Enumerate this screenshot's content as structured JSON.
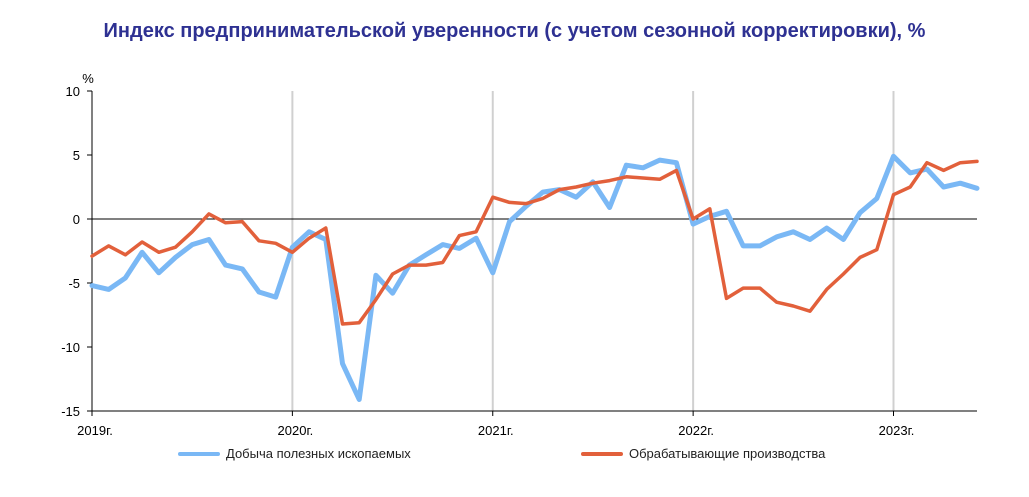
{
  "colors": {
    "title": "#2E3192",
    "mining": "#7AB8F5",
    "manufacturing": "#E2603B",
    "grid": "#D0D0D0",
    "axis": "#000000"
  },
  "chart_data": {
    "type": "line",
    "title": "Индекс предпринимательской уверенности (с учетом сезонной корректировки), %",
    "ylabel": "%",
    "ylim": [
      -15,
      10
    ],
    "yticks": [
      10,
      5,
      0,
      -5,
      -10,
      -15
    ],
    "x_range": [
      "2019-01",
      "2023-06"
    ],
    "x_ticks": [
      {
        "date": "2019-01",
        "label": "2019г."
      },
      {
        "date": "2020-01",
        "label": "2020г."
      },
      {
        "date": "2021-01",
        "label": "2021г."
      },
      {
        "date": "2022-01",
        "label": "2022г."
      },
      {
        "date": "2023-01",
        "label": "2023г."
      }
    ],
    "grid": "vertical at year ticks",
    "legend_position": "bottom",
    "x": [
      "2019-01",
      "2019-02",
      "2019-03",
      "2019-04",
      "2019-05",
      "2019-06",
      "2019-07",
      "2019-08",
      "2019-09",
      "2019-10",
      "2019-11",
      "2019-12",
      "2020-01",
      "2020-02",
      "2020-03",
      "2020-04",
      "2020-05",
      "2020-06",
      "2020-07",
      "2020-08",
      "2020-09",
      "2020-10",
      "2020-11",
      "2020-12",
      "2021-01",
      "2021-02",
      "2021-03",
      "2021-04",
      "2021-05",
      "2021-06",
      "2021-07",
      "2021-08",
      "2021-09",
      "2021-10",
      "2021-11",
      "2021-12",
      "2022-01",
      "2022-02",
      "2022-03",
      "2022-04",
      "2022-05",
      "2022-06",
      "2022-07",
      "2022-08",
      "2022-09",
      "2022-10",
      "2022-11",
      "2022-12",
      "2023-01",
      "2023-02",
      "2023-03",
      "2023-04",
      "2023-05",
      "2023-06"
    ],
    "series": [
      {
        "name": "Добыча полезных ископаемых",
        "color": "#7AB8F5",
        "values": [
          -5.2,
          -5.5,
          -4.6,
          -2.6,
          -4.2,
          -3.0,
          -2.0,
          -1.6,
          -3.6,
          -3.9,
          -5.7,
          -6.1,
          -2.2,
          -1.0,
          -1.6,
          -11.3,
          -14.1,
          -4.4,
          -5.8,
          -3.6,
          -2.8,
          -2.0,
          -2.3,
          -1.5,
          -4.2,
          -0.2,
          1.0,
          2.1,
          2.3,
          1.7,
          2.9,
          0.9,
          4.2,
          4.0,
          4.6,
          4.4,
          -0.4,
          0.2,
          0.6,
          -2.1,
          -2.1,
          -1.4,
          -1.0,
          -1.6,
          -0.7,
          -1.6,
          0.5,
          1.6,
          4.9,
          3.6,
          3.9,
          2.5,
          2.8,
          2.4
        ]
      },
      {
        "name": "Обрабатывающие производства",
        "color": "#E2603B",
        "values": [
          -2.9,
          -2.1,
          -2.8,
          -1.8,
          -2.6,
          -2.2,
          -1.0,
          0.4,
          -0.3,
          -0.2,
          -1.7,
          -1.9,
          -2.6,
          -1.5,
          -0.7,
          -8.2,
          -8.1,
          -6.3,
          -4.3,
          -3.6,
          -3.6,
          -3.4,
          -1.3,
          -1.0,
          1.7,
          1.3,
          1.2,
          1.6,
          2.3,
          2.5,
          2.8,
          3.0,
          3.3,
          3.2,
          3.1,
          3.8,
          0.0,
          0.8,
          -6.2,
          -5.4,
          -5.4,
          -6.5,
          -6.8,
          -7.2,
          -5.5,
          -4.3,
          -3.0,
          -2.4,
          1.9,
          2.5,
          4.4,
          3.8,
          4.4,
          4.5
        ]
      }
    ]
  }
}
